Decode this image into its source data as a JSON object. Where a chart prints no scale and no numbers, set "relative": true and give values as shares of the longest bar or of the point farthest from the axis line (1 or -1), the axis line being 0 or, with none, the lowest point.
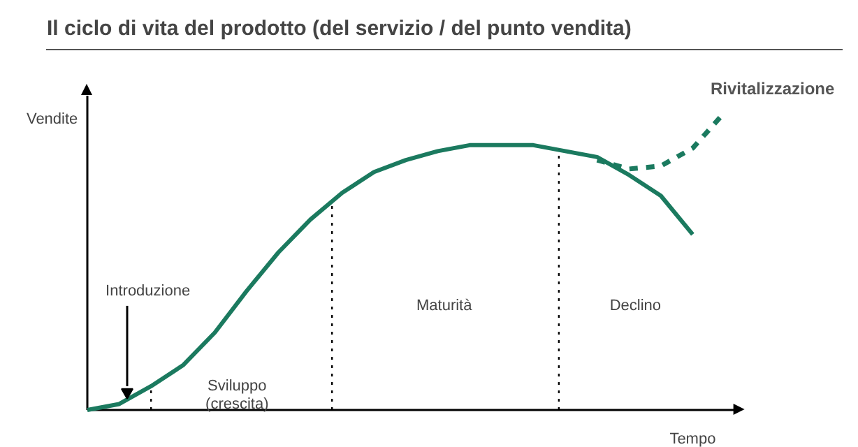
{
  "chart_data": {
    "type": "line",
    "relative": true,
    "title": "Il ciclo di vita del prodotto (del servizio / del punto vendita)",
    "xlabel": "Tempo",
    "ylabel": "Vendite",
    "categories": [
      null,
      null,
      null,
      null,
      null,
      null,
      null,
      null,
      null,
      null,
      null,
      null,
      null,
      null,
      null,
      null,
      null,
      null,
      null,
      null,
      null
    ],
    "series": [
      {
        "color": "#1b7a5f",
        "line_style": "solid",
        "values": [
          0,
          0.02,
          0.08,
          0.15,
          0.26,
          0.4,
          0.53,
          0.64,
          0.73,
          0.8,
          0.84,
          0.87,
          0.89,
          0.89,
          0.89,
          0.87,
          0.85,
          0.79,
          0.72,
          0.59,
          null
        ]
      },
      {
        "name": "Rivitalizzazione",
        "color": "#1b7a5f",
        "line_style": "dashed",
        "values": [
          null,
          null,
          null,
          null,
          null,
          null,
          null,
          null,
          null,
          null,
          null,
          null,
          null,
          null,
          null,
          null,
          0.84,
          0.81,
          0.82,
          0.88,
          1.0
        ]
      }
    ],
    "annotations": [
      "Introduzione",
      "Sviluppo\n(crescita)",
      "Maturità",
      "Declino"
    ]
  }
}
